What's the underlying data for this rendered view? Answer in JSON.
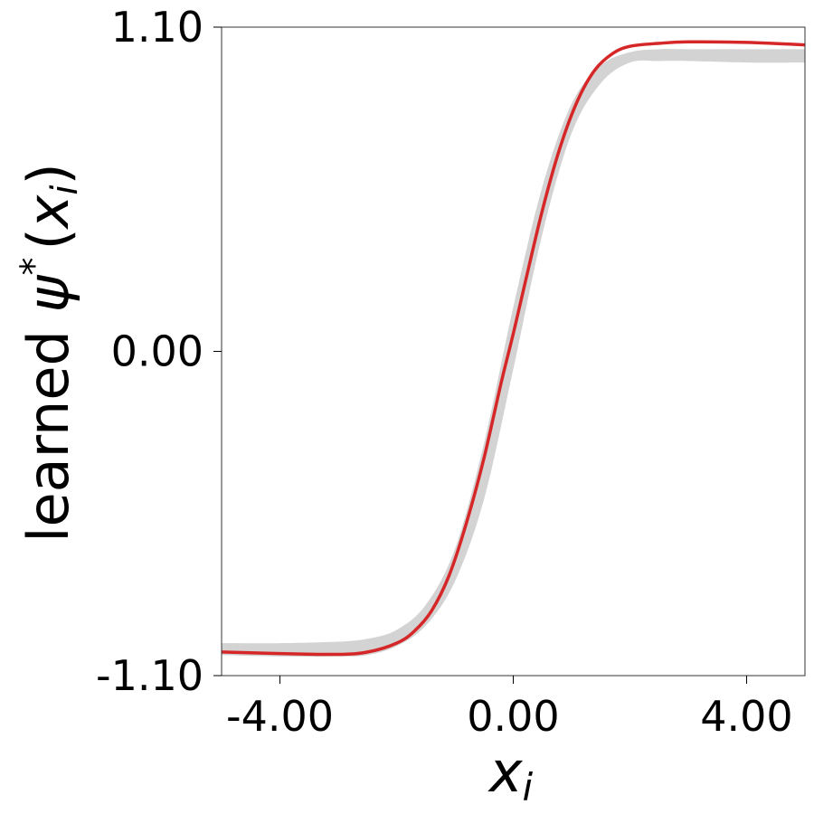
{
  "chart_data": {
    "type": "line",
    "xlabel_main": "x",
    "xlabel_sub": "i",
    "ylabel_prefix": "learned ",
    "ylabel_psi": "ψ",
    "ylabel_star": "*",
    "ylabel_open": "(",
    "ylabel_var": "x",
    "ylabel_sub": "i",
    "ylabel_close": ")",
    "xlim": [
      -5.0,
      5.0
    ],
    "ylim": [
      -1.1,
      1.1
    ],
    "x_ticks": [
      -4.0,
      0.0,
      4.0
    ],
    "x_tick_labels": [
      "-4.00",
      "0.00",
      "4.00"
    ],
    "y_ticks": [
      -1.1,
      0.0,
      1.1
    ],
    "y_tick_labels": [
      "-1.10",
      "0.00",
      "1.10"
    ],
    "grid": false,
    "series": [
      {
        "role": "band",
        "color": "#d3d3d3",
        "x": [
          -5.0,
          -4.0,
          -3.0,
          -2.5,
          -2.0,
          -1.5,
          -1.0,
          -0.5,
          0.0,
          0.5,
          1.0,
          1.5,
          2.0,
          2.5,
          3.0,
          4.0,
          5.0
        ],
        "lower": [
          -1.03,
          -1.035,
          -1.035,
          -1.03,
          -1.0,
          -0.93,
          -0.78,
          -0.5,
          -0.06,
          0.4,
          0.74,
          0.91,
          0.98,
          0.985,
          0.985,
          0.98,
          0.98
        ],
        "upper": [
          -0.99,
          -0.99,
          -0.985,
          -0.975,
          -0.945,
          -0.86,
          -0.67,
          -0.31,
          0.15,
          0.56,
          0.84,
          0.97,
          1.015,
          1.025,
          1.025,
          1.025,
          1.025
        ]
      },
      {
        "role": "line",
        "color": "#d62728",
        "x": [
          -5.0,
          -4.0,
          -3.0,
          -2.5,
          -2.0,
          -1.7,
          -1.4,
          -1.1,
          -0.8,
          -0.5,
          -0.2,
          0.0,
          0.2,
          0.5,
          0.8,
          1.1,
          1.4,
          1.7,
          2.0,
          2.5,
          3.0,
          4.0,
          5.0
        ],
        "y": [
          -1.02,
          -1.025,
          -1.028,
          -1.02,
          -0.99,
          -0.95,
          -0.88,
          -0.76,
          -0.58,
          -0.36,
          -0.1,
          0.06,
          0.23,
          0.48,
          0.69,
          0.85,
          0.955,
          1.01,
          1.035,
          1.045,
          1.05,
          1.048,
          1.04
        ]
      }
    ]
  }
}
